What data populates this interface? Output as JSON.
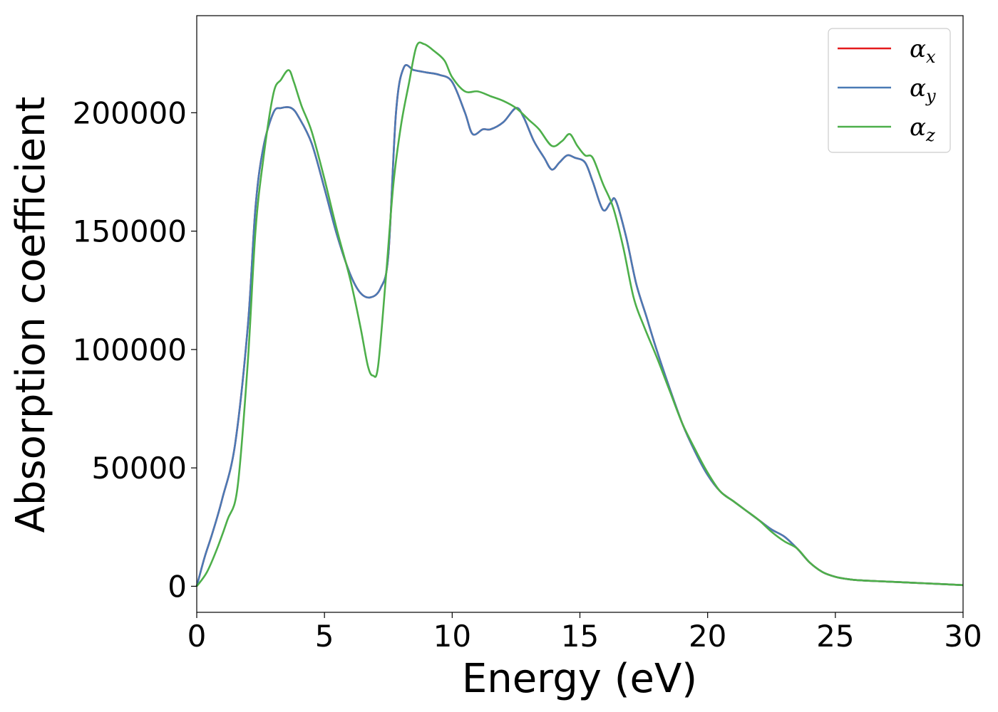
{
  "chart_data": {
    "type": "line",
    "xlabel": "Energy (eV)",
    "ylabel": "Absorption coefficient",
    "xlim": [
      0,
      30
    ],
    "ylim": [
      -11000,
      241000
    ],
    "xticks": [
      0,
      5,
      10,
      15,
      20,
      25,
      30
    ],
    "yticks": [
      0,
      50000,
      100000,
      150000,
      200000
    ],
    "grid": false,
    "legend_position": "top-right",
    "series": [
      {
        "name": "α",
        "subscript": "x",
        "color": "#e41a1c",
        "x": [
          0,
          0.3,
          0.6,
          1.0,
          1.5,
          2.0,
          2.3,
          2.6,
          3.0,
          3.3,
          3.7,
          4.0,
          4.5,
          5.0,
          5.5,
          6.0,
          6.4,
          6.8,
          7.2,
          7.5,
          7.8,
          8.1,
          8.5,
          9.0,
          9.5,
          10.0,
          10.5,
          10.8,
          11.2,
          11.5,
          12.0,
          12.5,
          12.8,
          13.2,
          13.6,
          13.9,
          14.2,
          14.5,
          14.8,
          15.2,
          15.5,
          15.9,
          16.2,
          16.4,
          16.8,
          17.2,
          17.6,
          18.0,
          18.5,
          19.0,
          19.5,
          20.0,
          20.5,
          21.0,
          21.5,
          22.0,
          22.5,
          23.0,
          23.5,
          24.0,
          24.5,
          25.0,
          25.5,
          26.0,
          27.0,
          28.0,
          29.0,
          30.0
        ],
        "values": [
          0,
          12000,
          22000,
          37000,
          60000,
          110000,
          160000,
          185000,
          200000,
          202000,
          202000,
          198000,
          187000,
          168000,
          148000,
          132000,
          124000,
          122000,
          126000,
          140000,
          200000,
          219000,
          218000,
          217000,
          216000,
          213000,
          200000,
          191000,
          193000,
          193000,
          196000,
          202000,
          198000,
          188000,
          181000,
          176000,
          179000,
          182000,
          181000,
          179000,
          171000,
          159000,
          162000,
          163000,
          148000,
          128000,
          114000,
          100000,
          84000,
          69000,
          57000,
          47000,
          40000,
          36000,
          32000,
          28000,
          24000,
          21000,
          16000,
          10000,
          6000,
          4000,
          3000,
          2500,
          2000,
          1500,
          1000,
          500
        ]
      },
      {
        "name": "α",
        "subscript": "y",
        "color": "#4a7ab5",
        "x": [
          0,
          0.3,
          0.6,
          1.0,
          1.5,
          2.0,
          2.3,
          2.6,
          3.0,
          3.3,
          3.7,
          4.0,
          4.5,
          5.0,
          5.5,
          6.0,
          6.4,
          6.8,
          7.2,
          7.5,
          7.8,
          8.1,
          8.5,
          9.0,
          9.5,
          10.0,
          10.5,
          10.8,
          11.2,
          11.5,
          12.0,
          12.5,
          12.8,
          13.2,
          13.6,
          13.9,
          14.2,
          14.5,
          14.8,
          15.2,
          15.5,
          15.9,
          16.2,
          16.4,
          16.8,
          17.2,
          17.6,
          18.0,
          18.5,
          19.0,
          19.5,
          20.0,
          20.5,
          21.0,
          21.5,
          22.0,
          22.5,
          23.0,
          23.5,
          24.0,
          24.5,
          25.0,
          25.5,
          26.0,
          27.0,
          28.0,
          29.0,
          30.0
        ],
        "values": [
          0,
          12000,
          22000,
          37000,
          60000,
          110000,
          160000,
          185000,
          200000,
          202000,
          202000,
          198000,
          187000,
          168000,
          148000,
          132000,
          124000,
          122000,
          126000,
          140000,
          200000,
          219000,
          218000,
          217000,
          216000,
          213000,
          200000,
          191000,
          193000,
          193000,
          196000,
          202000,
          198000,
          188000,
          181000,
          176000,
          179000,
          182000,
          181000,
          179000,
          171000,
          159000,
          162000,
          163000,
          148000,
          128000,
          114000,
          100000,
          84000,
          69000,
          57000,
          47000,
          40000,
          36000,
          32000,
          28000,
          24000,
          21000,
          16000,
          10000,
          6000,
          4000,
          3000,
          2500,
          2000,
          1500,
          1000,
          500
        ]
      },
      {
        "name": "α",
        "subscript": "z",
        "color": "#4daf4a",
        "x": [
          0,
          0.4,
          0.8,
          1.2,
          1.6,
          2.0,
          2.3,
          2.6,
          3.0,
          3.3,
          3.6,
          3.8,
          4.1,
          4.5,
          5.0,
          5.5,
          6.0,
          6.4,
          6.7,
          6.9,
          7.1,
          7.4,
          7.7,
          8.0,
          8.3,
          8.6,
          8.9,
          9.3,
          9.7,
          10.0,
          10.5,
          11.0,
          11.5,
          12.0,
          12.5,
          13.0,
          13.4,
          13.9,
          14.3,
          14.6,
          14.9,
          15.2,
          15.5,
          15.9,
          16.3,
          16.7,
          17.1,
          17.5,
          18.0,
          18.5,
          19.0,
          19.5,
          20.0,
          20.5,
          21.0,
          21.5,
          22.0,
          22.5,
          23.0,
          23.5,
          24.0,
          24.5,
          25.0,
          25.5,
          26.0,
          27.0,
          28.0,
          29.0,
          30.0
        ],
        "values": [
          0,
          6000,
          16000,
          28000,
          42000,
          95000,
          150000,
          180000,
          208000,
          214000,
          218000,
          213000,
          203000,
          192000,
          172000,
          150000,
          130000,
          110000,
          93000,
          89000,
          93000,
          130000,
          170000,
          195000,
          212000,
          228000,
          229000,
          226000,
          222000,
          215000,
          209000,
          209000,
          207000,
          205000,
          202000,
          197000,
          193000,
          186000,
          188000,
          191000,
          186000,
          182000,
          181000,
          170000,
          160000,
          143000,
          122000,
          110000,
          97000,
          83000,
          69000,
          58000,
          48000,
          40000,
          36000,
          32000,
          28000,
          23000,
          19000,
          16000,
          10000,
          6000,
          4000,
          3000,
          2500,
          2000,
          1500,
          1000,
          500
        ]
      }
    ]
  }
}
